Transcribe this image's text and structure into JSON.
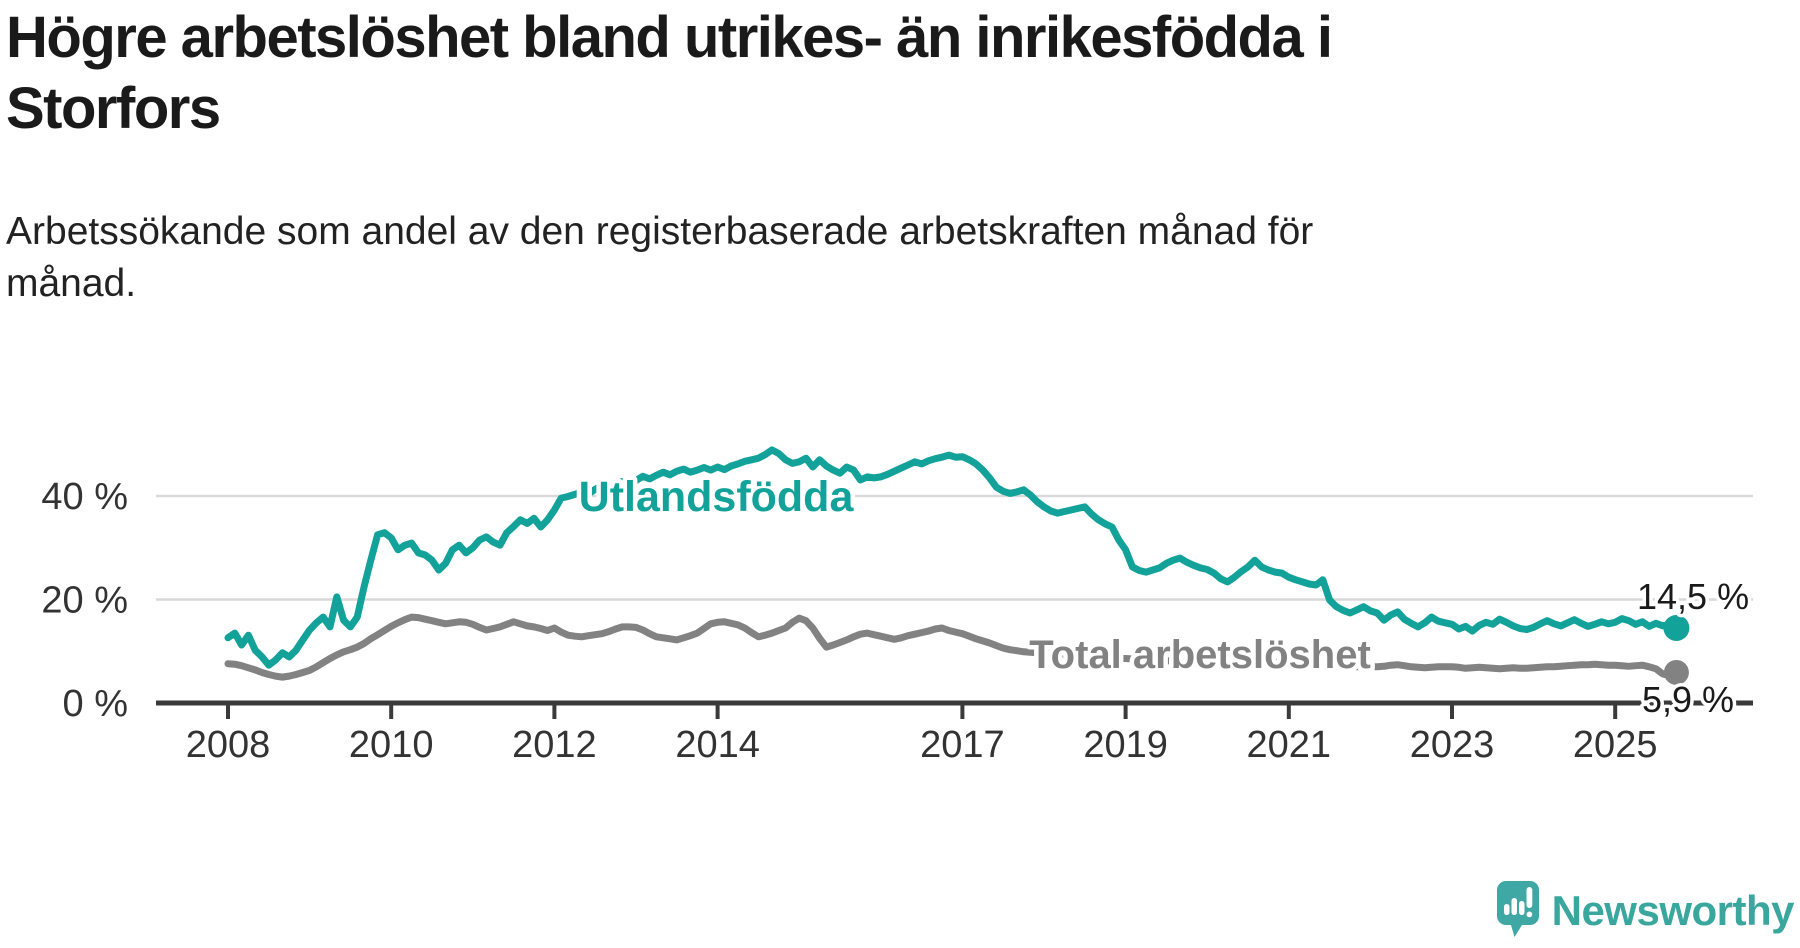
{
  "header": {
    "title_line1": "Högre arbetslöshet bland utrikes- än inrikesfödda i",
    "title_line2": "Storfors",
    "subtitle_line1": "Arbetssökande som andel av den registerbaserade arbetskraften månad för",
    "subtitle_line2": "månad."
  },
  "chart_data": {
    "type": "line",
    "title": "Högre arbetslöshet bland utrikes- än inrikesfödda i Storfors",
    "subtitle": "Arbetssökande som andel av den registerbaserade arbetskraften månad för månad.",
    "xlabel": "",
    "ylabel": "",
    "unit": "%",
    "grid": true,
    "gridline_values": [
      20,
      40
    ],
    "legend_position": "inline-labels",
    "x_unit": "month",
    "x_start": "2008-01",
    "x_end": "2025-10",
    "xlim_years": [
      2007.1,
      2026.7
    ],
    "ylim": [
      0,
      52
    ],
    "y_ticks": [
      {
        "value": 0,
        "label": "0 %"
      },
      {
        "value": 20,
        "label": "20 %"
      },
      {
        "value": 40,
        "label": "40 %"
      }
    ],
    "x_ticks": [
      {
        "year": 2008,
        "label": "2008"
      },
      {
        "year": 2010,
        "label": "2010"
      },
      {
        "year": 2012,
        "label": "2012"
      },
      {
        "year": 2014,
        "label": "2014"
      },
      {
        "year": 2017,
        "label": "2017"
      },
      {
        "year": 2019,
        "label": "2019"
      },
      {
        "year": 2021,
        "label": "2021"
      },
      {
        "year": 2023,
        "label": "2023"
      },
      {
        "year": 2025,
        "label": "2025"
      }
    ],
    "series": [
      {
        "name": "Utlandsfödda",
        "color": "#12a29a",
        "end_value": 14.5,
        "end_label": "14,5 %",
        "values": [
          12.6,
          13.5,
          11.2,
          13.1,
          10.2,
          8.9,
          7.3,
          8.3,
          9.7,
          8.9,
          10.2,
          12.2,
          14.1,
          15.5,
          16.6,
          14.7,
          20.5,
          16.0,
          14.7,
          16.6,
          22.4,
          27.6,
          32.5,
          32.9,
          31.9,
          29.6,
          30.5,
          30.9,
          29.0,
          28.6,
          27.6,
          25.7,
          27.0,
          29.6,
          30.5,
          29.0,
          30.0,
          31.5,
          32.1,
          31.1,
          30.5,
          32.9,
          34.1,
          35.4,
          34.7,
          35.7,
          34.0,
          35.4,
          37.3,
          39.6,
          39.9,
          40.3,
          40.8,
          40.4,
          41.3,
          42.0,
          41.5,
          42.3,
          42.8,
          42.4,
          43.0,
          43.8,
          43.3,
          44.0,
          44.6,
          44.1,
          44.8,
          45.2,
          44.6,
          45.0,
          45.5,
          45.0,
          45.6,
          45.1,
          45.8,
          46.2,
          46.7,
          47.0,
          47.3,
          48.0,
          48.9,
          48.2,
          47.0,
          46.3,
          46.6,
          47.3,
          45.6,
          47.0,
          45.8,
          45.0,
          44.4,
          45.6,
          45.0,
          43.1,
          43.7,
          43.5,
          43.7,
          44.2,
          44.8,
          45.4,
          46.0,
          46.6,
          46.2,
          46.8,
          47.2,
          47.5,
          47.9,
          47.5,
          47.6,
          47.0,
          46.2,
          45.0,
          43.5,
          41.7,
          40.9,
          40.5,
          40.8,
          41.2,
          40.2,
          38.9,
          37.9,
          37.1,
          36.7,
          37.0,
          37.3,
          37.6,
          37.9,
          36.5,
          35.4,
          34.6,
          34.0,
          31.5,
          29.6,
          26.3,
          25.6,
          25.3,
          25.7,
          26.1,
          27.0,
          27.6,
          28.0,
          27.2,
          26.6,
          26.1,
          25.8,
          25.1,
          24.0,
          23.4,
          24.3,
          25.4,
          26.3,
          27.6,
          26.3,
          25.7,
          25.3,
          25.1,
          24.3,
          23.8,
          23.4,
          23.0,
          22.8,
          23.8,
          19.9,
          18.6,
          17.9,
          17.4,
          18.0,
          18.6,
          17.8,
          17.4,
          16.0,
          17.0,
          17.6,
          16.2,
          15.4,
          14.7,
          15.5,
          16.6,
          15.8,
          15.5,
          15.2,
          14.3,
          14.8,
          13.9,
          15.0,
          15.6,
          15.2,
          16.2,
          15.6,
          14.9,
          14.4,
          14.2,
          14.6,
          15.3,
          15.9,
          15.3,
          14.9,
          15.5,
          16.1,
          15.4,
          14.8,
          15.2,
          15.7,
          15.3,
          15.6,
          16.3,
          15.9,
          15.2,
          15.7,
          14.8,
          15.4,
          14.9,
          15.2,
          14.5
        ]
      },
      {
        "name": "Total arbetslöshet",
        "color": "#828282",
        "end_value": 5.9,
        "end_label": "5,9 %",
        "values": [
          7.6,
          7.5,
          7.2,
          6.8,
          6.4,
          5.9,
          5.5,
          5.2,
          5.0,
          5.2,
          5.5,
          5.9,
          6.3,
          7.0,
          7.8,
          8.6,
          9.3,
          9.9,
          10.3,
          10.8,
          11.5,
          12.4,
          13.2,
          14.0,
          14.8,
          15.5,
          16.1,
          16.6,
          16.5,
          16.2,
          15.9,
          15.6,
          15.3,
          15.5,
          15.7,
          15.6,
          15.2,
          14.6,
          14.1,
          14.4,
          14.7,
          15.2,
          15.7,
          15.3,
          14.9,
          14.7,
          14.4,
          14.0,
          14.5,
          13.7,
          13.1,
          12.9,
          12.8,
          13.0,
          13.2,
          13.4,
          13.8,
          14.3,
          14.7,
          14.7,
          14.6,
          14.1,
          13.4,
          12.8,
          12.6,
          12.4,
          12.2,
          12.6,
          13.0,
          13.5,
          14.4,
          15.3,
          15.6,
          15.7,
          15.4,
          15.1,
          14.5,
          13.6,
          12.8,
          13.1,
          13.5,
          14.0,
          14.5,
          15.6,
          16.4,
          15.9,
          14.5,
          12.5,
          10.8,
          11.2,
          11.7,
          12.2,
          12.8,
          13.3,
          13.5,
          13.2,
          12.9,
          12.6,
          12.3,
          12.6,
          13.0,
          13.3,
          13.6,
          13.9,
          14.3,
          14.5,
          14.0,
          13.7,
          13.4,
          12.9,
          12.4,
          12.0,
          11.6,
          11.1,
          10.6,
          10.3,
          10.1,
          9.9,
          9.8,
          9.7,
          9.7,
          9.6,
          9.5,
          9.4,
          9.3,
          9.2,
          9.1,
          9.0,
          8.9,
          8.8,
          8.7,
          8.6,
          8.6,
          8.5,
          8.4,
          8.4,
          8.3,
          8.2,
          8.2,
          8.1,
          8.1,
          8.2,
          8.2,
          8.3,
          8.4,
          8.4,
          8.5,
          8.6,
          8.5,
          8.4,
          8.3,
          8.2,
          8.1,
          8.0,
          7.9,
          7.8,
          7.7,
          7.6,
          7.5,
          7.4,
          7.3,
          7.3,
          7.2,
          7.1,
          7.1,
          7.0,
          7.0,
          7.0,
          7.0,
          7.0,
          7.1,
          7.3,
          7.4,
          7.2,
          7.0,
          6.9,
          6.8,
          6.9,
          7.0,
          7.0,
          7.0,
          6.9,
          6.7,
          6.8,
          6.9,
          6.8,
          6.7,
          6.6,
          6.7,
          6.8,
          6.7,
          6.7,
          6.8,
          6.9,
          7.0,
          7.0,
          7.1,
          7.2,
          7.3,
          7.4,
          7.4,
          7.5,
          7.4,
          7.3,
          7.3,
          7.2,
          7.1,
          7.2,
          7.3,
          7.0,
          6.6,
          5.6,
          5.3,
          5.9
        ]
      }
    ],
    "annotations": [
      {
        "text": "Utlandsfödda",
        "series": "Utlandsfödda"
      },
      {
        "text": "Total arbetslöshet",
        "series": "Total arbetslöshet"
      },
      {
        "text": "14,5 %",
        "series": "Utlandsfödda"
      },
      {
        "text": "5,9 %",
        "series": "Total arbetslöshet"
      }
    ]
  },
  "branding": {
    "logo_text": "Newsworthy",
    "logo_color": "#3fa7a4",
    "logo_text_color": "#3aa79e",
    "icon": "newsworthy-chart-bubble-icon"
  }
}
